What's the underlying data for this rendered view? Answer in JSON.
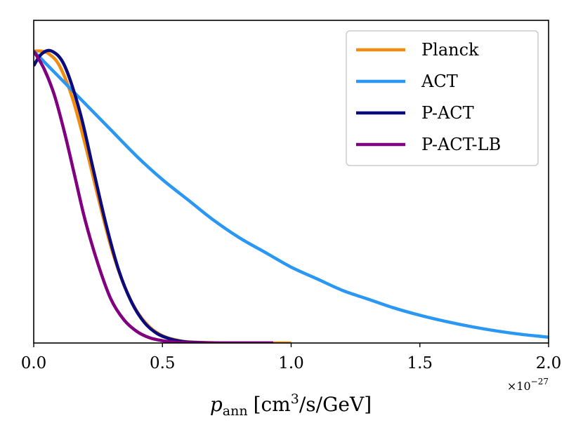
{
  "chart_data": {
    "type": "line",
    "title": "",
    "xlabel": "p_ann [cm^3/s/GeV]",
    "xlabel_parts": {
      "var": "p",
      "sub": "ann",
      "unit_pre": "[cm",
      "unit_sup": "3",
      "unit_post": "/s/GeV]"
    },
    "ylabel": "",
    "x_offset_label": {
      "base": "×10",
      "exp": "−27"
    },
    "xlim": [
      0,
      2.0
    ],
    "ylim": [
      0,
      1.1
    ],
    "xticks": [
      0.0,
      0.5,
      1.0,
      1.5,
      2.0
    ],
    "xtick_labels": [
      "0.0",
      "0.5",
      "1.0",
      "1.5",
      "2.0"
    ],
    "yticks_visible": false,
    "grid": false,
    "legend_position": "top-right",
    "series": [
      {
        "name": "Planck",
        "color": "#f28c0f",
        "x": [
          0.0,
          0.03,
          0.06,
          0.1,
          0.15,
          0.2,
          0.25,
          0.3,
          0.35,
          0.4,
          0.45,
          0.5,
          0.55,
          0.6,
          0.7,
          0.8,
          0.9,
          1.0
        ],
        "y": [
          1.0,
          1.0,
          0.99,
          0.95,
          0.84,
          0.68,
          0.5,
          0.33,
          0.2,
          0.11,
          0.055,
          0.025,
          0.011,
          0.004,
          0.001,
          0.0,
          0.0,
          0.0
        ]
      },
      {
        "name": "ACT",
        "color": "#2b97f5",
        "x": [
          0.0,
          0.1,
          0.2,
          0.3,
          0.4,
          0.5,
          0.6,
          0.7,
          0.8,
          0.9,
          1.0,
          1.1,
          1.2,
          1.3,
          1.4,
          1.5,
          1.6,
          1.7,
          1.8,
          1.9,
          2.0
        ],
        "y": [
          1.0,
          0.91,
          0.82,
          0.73,
          0.64,
          0.56,
          0.49,
          0.42,
          0.36,
          0.31,
          0.26,
          0.22,
          0.18,
          0.15,
          0.12,
          0.095,
          0.074,
          0.056,
          0.041,
          0.029,
          0.02
        ]
      },
      {
        "name": "P-ACT",
        "color": "#0b0b7d",
        "x": [
          0.0,
          0.03,
          0.07,
          0.12,
          0.18,
          0.23,
          0.28,
          0.33,
          0.38,
          0.43,
          0.48,
          0.53,
          0.58,
          0.63,
          0.7,
          0.8,
          0.93
        ],
        "y": [
          0.95,
          0.99,
          1.0,
          0.95,
          0.79,
          0.6,
          0.41,
          0.25,
          0.14,
          0.07,
          0.032,
          0.014,
          0.005,
          0.002,
          0.0,
          0.0,
          0.0
        ]
      },
      {
        "name": "P-ACT-LB",
        "color": "#800080",
        "x": [
          0.0,
          0.04,
          0.08,
          0.12,
          0.16,
          0.2,
          0.25,
          0.3,
          0.35,
          0.4,
          0.45,
          0.5,
          0.55,
          0.6,
          0.7,
          0.8,
          0.93
        ],
        "y": [
          1.0,
          0.94,
          0.85,
          0.72,
          0.57,
          0.42,
          0.27,
          0.15,
          0.08,
          0.04,
          0.018,
          0.008,
          0.003,
          0.001,
          0.0,
          0.0,
          0.0
        ]
      }
    ]
  }
}
